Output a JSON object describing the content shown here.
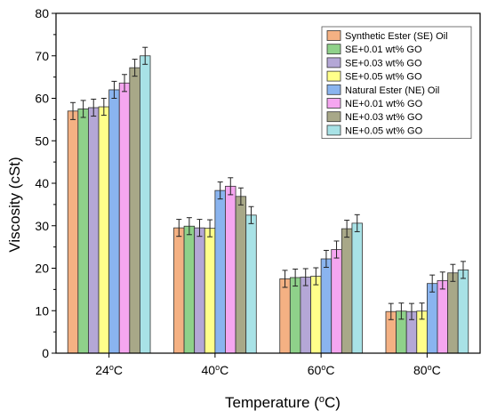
{
  "chart_data": {
    "type": "bar",
    "title": "",
    "xlabel": "Temperature (",
    "xlabel_sup": "o",
    "xlabel_end": "C)",
    "ylabel": "Viscosity (cSt)",
    "ylim": [
      0,
      80
    ],
    "yticks": [
      0,
      10,
      20,
      30,
      40,
      50,
      60,
      70,
      80
    ],
    "categories": [
      {
        "value": "24",
        "sup": "o",
        "unit": "C"
      },
      {
        "value": "40",
        "sup": "o",
        "unit": "C"
      },
      {
        "value": "60",
        "sup": "o",
        "unit": "C"
      },
      {
        "value": "80",
        "sup": "o",
        "unit": "C"
      }
    ],
    "legend_position": "top-right",
    "grid": false,
    "series": [
      {
        "name": "Synthetic Ester (SE) Oil",
        "color": "#f4b183",
        "values": [
          57.0,
          29.5,
          17.5,
          9.8
        ],
        "errors": [
          2.0,
          2.0,
          2.0,
          1.9
        ]
      },
      {
        "name": "SE+0.01 wt% GO",
        "color": "#8fd18a",
        "values": [
          57.5,
          29.9,
          17.8,
          9.9
        ],
        "errors": [
          2.0,
          2.0,
          2.0,
          1.9
        ]
      },
      {
        "name": "SE+0.03 wt% GO",
        "color": "#b4a7d6",
        "values": [
          57.8,
          29.5,
          17.9,
          9.8
        ],
        "errors": [
          2.0,
          2.0,
          2.0,
          1.9
        ]
      },
      {
        "name": "SE+0.05 wt% GO",
        "color": "#ffff8a",
        "values": [
          58.0,
          29.4,
          18.1,
          9.9
        ],
        "errors": [
          2.0,
          2.0,
          2.0,
          1.9
        ]
      },
      {
        "name": "Natural Ester (NE) Oil",
        "color": "#8ab4ef",
        "values": [
          62.0,
          38.3,
          22.2,
          16.4
        ],
        "errors": [
          2.0,
          2.0,
          2.0,
          2.0
        ]
      },
      {
        "name": "NE+0.01 wt% GO",
        "color": "#f5a6f0",
        "values": [
          63.6,
          39.3,
          24.4,
          17.1
        ],
        "errors": [
          2.0,
          2.0,
          2.0,
          2.0
        ]
      },
      {
        "name": "NE+0.03 wt% GO",
        "color": "#a8a888",
        "values": [
          67.2,
          36.9,
          29.3,
          18.9
        ],
        "errors": [
          2.0,
          2.0,
          2.0,
          2.0
        ]
      },
      {
        "name": "NE+0.05 wt% GO",
        "color": "#a8e2e6",
        "values": [
          70.0,
          32.5,
          30.6,
          19.6
        ],
        "errors": [
          2.0,
          2.0,
          2.0,
          2.0
        ]
      }
    ]
  }
}
